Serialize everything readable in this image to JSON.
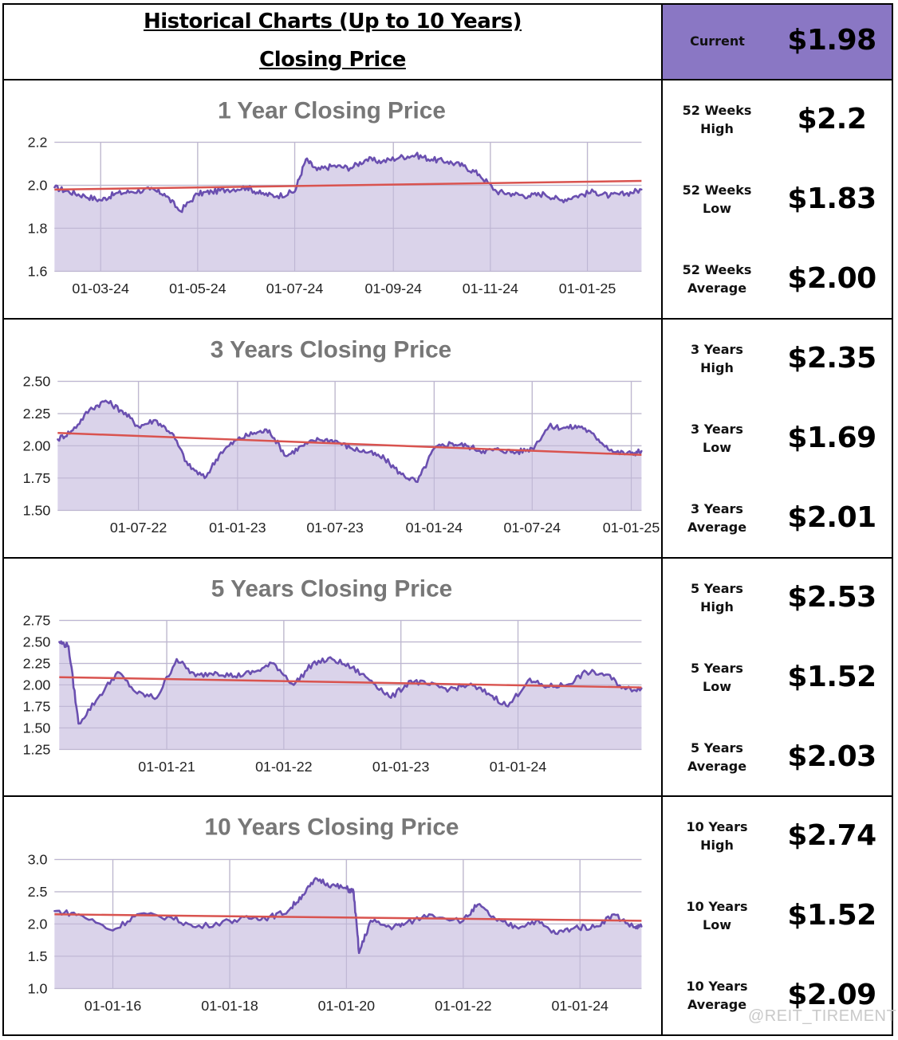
{
  "header": {
    "title_line1": "Historical Charts (Up to 10 Years)",
    "title_line2": "Closing Price",
    "current_label": "Current",
    "current_value": "$1.98"
  },
  "stats": [
    [
      {
        "label": "52 Weeks\nHigh",
        "value": "$2.2"
      },
      {
        "label": "52 Weeks\nLow",
        "value": "$1.83"
      },
      {
        "label": "52 Weeks\nAverage",
        "value": "$2.00"
      }
    ],
    [
      {
        "label": "3 Years\nHigh",
        "value": "$2.35"
      },
      {
        "label": "3 Years\nLow",
        "value": "$1.69"
      },
      {
        "label": "3 Years\nAverage",
        "value": "$2.01"
      }
    ],
    [
      {
        "label": "5 Years\nHigh",
        "value": "$2.53"
      },
      {
        "label": "5 Years\nLow",
        "value": "$1.52"
      },
      {
        "label": "5 Years\nAverage",
        "value": "$2.03"
      }
    ],
    [
      {
        "label": "10 Years\nHigh",
        "value": "$2.74"
      },
      {
        "label": "10 Years\nLow",
        "value": "$1.52"
      },
      {
        "label": "10 Years\nAverage",
        "value": "$2.09"
      }
    ]
  ],
  "watermark": "@REIT_TIREMENT",
  "colors": {
    "line": "#6a4fb0",
    "fill": "#d4cbe6",
    "trend": "#d9534f",
    "header_bg": "#8a77c4"
  },
  "chart_data": [
    {
      "type": "area",
      "title": "1 Year Closing Price",
      "xlim": [
        "2024-02-01",
        "2025-02-04"
      ],
      "ylim": [
        1.6,
        2.2
      ],
      "yticks": [
        1.6,
        1.8,
        2.0,
        2.2
      ],
      "yticklabels": [
        "1.6",
        "1.8",
        "2.0",
        "2.2"
      ],
      "xticks": [
        "2024-03-01",
        "2024-05-01",
        "2024-07-01",
        "2024-09-01",
        "2024-11-01",
        "2025-01-01"
      ],
      "xticklabels": [
        "01-03-24",
        "01-05-24",
        "01-07-24",
        "01-09-24",
        "01-11-24",
        "01-01-25"
      ],
      "trend": [
        1.98,
        2.02
      ],
      "x": [
        "2024-02-01",
        "2024-02-10",
        "2024-02-20",
        "2024-03-01",
        "2024-03-10",
        "2024-03-20",
        "2024-04-01",
        "2024-04-10",
        "2024-04-20",
        "2024-05-01",
        "2024-05-10",
        "2024-05-20",
        "2024-06-01",
        "2024-06-10",
        "2024-06-20",
        "2024-07-01",
        "2024-07-08",
        "2024-07-15",
        "2024-07-25",
        "2024-08-05",
        "2024-08-15",
        "2024-08-25",
        "2024-09-05",
        "2024-09-15",
        "2024-09-25",
        "2024-10-05",
        "2024-10-15",
        "2024-10-25",
        "2024-11-05",
        "2024-11-15",
        "2024-11-25",
        "2024-12-05",
        "2024-12-15",
        "2024-12-25",
        "2025-01-05",
        "2025-01-15",
        "2025-01-25",
        "2025-02-04"
      ],
      "y": [
        1.99,
        1.97,
        1.95,
        1.93,
        1.96,
        1.97,
        1.98,
        1.96,
        1.88,
        1.96,
        1.97,
        1.98,
        1.99,
        1.96,
        1.95,
        1.97,
        2.12,
        2.07,
        2.09,
        2.08,
        2.12,
        2.11,
        2.13,
        2.14,
        2.12,
        2.11,
        2.09,
        2.05,
        1.97,
        1.96,
        1.95,
        1.96,
        1.93,
        1.95,
        1.97,
        1.95,
        1.96,
        1.98
      ]
    },
    {
      "type": "area",
      "title": "3 Years Closing Price",
      "xlim": [
        "2022-02-01",
        "2025-01-20"
      ],
      "ylim": [
        1.5,
        2.5
      ],
      "yticks": [
        1.5,
        1.75,
        2.0,
        2.25,
        2.5
      ],
      "yticklabels": [
        "1.50",
        "1.75",
        "2.00",
        "2.25",
        "2.50"
      ],
      "xticks": [
        "2022-07-01",
        "2023-01-01",
        "2023-07-01",
        "2024-01-01",
        "2024-07-01",
        "2025-01-01"
      ],
      "xticklabels": [
        "01-07-22",
        "01-01-23",
        "01-07-23",
        "01-01-24",
        "01-07-24",
        "01-01-25"
      ],
      "trend": [
        2.1,
        1.93
      ],
      "x": [
        "2022-02-01",
        "2022-03-01",
        "2022-04-01",
        "2022-05-01",
        "2022-06-01",
        "2022-07-01",
        "2022-08-01",
        "2022-09-01",
        "2022-10-01",
        "2022-11-01",
        "2022-12-01",
        "2023-01-01",
        "2023-02-01",
        "2023-03-01",
        "2023-04-01",
        "2023-05-01",
        "2023-06-01",
        "2023-07-01",
        "2023-08-01",
        "2023-09-01",
        "2023-10-01",
        "2023-11-01",
        "2023-12-01",
        "2024-01-01",
        "2024-02-01",
        "2024-03-01",
        "2024-04-01",
        "2024-05-01",
        "2024-06-01",
        "2024-07-01",
        "2024-08-01",
        "2024-09-01",
        "2024-10-01",
        "2024-11-01",
        "2024-12-01",
        "2025-01-01",
        "2025-01-20"
      ],
      "y": [
        2.05,
        2.12,
        2.28,
        2.35,
        2.27,
        2.15,
        2.2,
        2.1,
        1.85,
        1.75,
        1.95,
        2.05,
        2.1,
        2.12,
        1.92,
        2.0,
        2.05,
        2.04,
        1.98,
        1.95,
        1.9,
        1.78,
        1.72,
        1.98,
        2.02,
        2.0,
        1.96,
        1.97,
        1.95,
        1.98,
        2.15,
        2.14,
        2.15,
        2.05,
        1.95,
        1.94,
        1.96
      ]
    },
    {
      "type": "area",
      "title": "5 Years Closing Price",
      "xlim": [
        "2020-02-01",
        "2025-01-20"
      ],
      "ylim": [
        1.25,
        2.75
      ],
      "yticks": [
        1.25,
        1.5,
        1.75,
        2.0,
        2.25,
        2.5,
        2.75
      ],
      "yticklabels": [
        "1.25",
        "1.50",
        "1.75",
        "2.00",
        "2.25",
        "2.50",
        "2.75"
      ],
      "xticks": [
        "2021-01-01",
        "2022-01-01",
        "2023-01-01",
        "2024-01-01"
      ],
      "xticklabels": [
        "01-01-21",
        "01-01-22",
        "01-01-23",
        "01-01-24"
      ],
      "trend": [
        2.09,
        1.97
      ],
      "x": [
        "2020-02-01",
        "2020-03-01",
        "2020-04-01",
        "2020-06-01",
        "2020-08-01",
        "2020-10-01",
        "2020-12-01",
        "2021-02-01",
        "2021-04-01",
        "2021-06-01",
        "2021-08-01",
        "2021-10-01",
        "2021-12-01",
        "2022-02-01",
        "2022-04-01",
        "2022-06-01",
        "2022-08-01",
        "2022-10-01",
        "2022-12-01",
        "2023-02-01",
        "2023-04-01",
        "2023-06-01",
        "2023-08-01",
        "2023-10-01",
        "2023-12-01",
        "2024-02-01",
        "2024-04-01",
        "2024-06-01",
        "2024-08-01",
        "2024-10-01",
        "2024-12-01",
        "2025-01-20"
      ],
      "y": [
        2.5,
        2.45,
        1.55,
        1.85,
        2.15,
        1.9,
        1.85,
        2.3,
        2.1,
        2.15,
        2.1,
        2.15,
        2.25,
        2.0,
        2.25,
        2.3,
        2.2,
        2.05,
        1.85,
        2.05,
        2.0,
        1.95,
        2.0,
        1.9,
        1.75,
        2.05,
        1.98,
        2.0,
        2.15,
        2.12,
        1.95,
        1.96
      ]
    },
    {
      "type": "area",
      "title": "10 Years Closing Price",
      "xlim": [
        "2015-01-01",
        "2025-01-20"
      ],
      "ylim": [
        1.0,
        3.0
      ],
      "yticks": [
        1.0,
        1.5,
        2.0,
        2.5,
        3.0
      ],
      "yticklabels": [
        "1.0",
        "1.5",
        "2.0",
        "2.5",
        "3.0"
      ],
      "xticks": [
        "2016-01-01",
        "2018-01-01",
        "2020-01-01",
        "2022-01-01",
        "2024-01-01"
      ],
      "xticklabels": [
        "01-01-16",
        "01-01-18",
        "01-01-20",
        "01-01-22",
        "01-01-24"
      ],
      "trend": [
        2.15,
        2.05
      ],
      "x": [
        "2015-01-01",
        "2015-06-01",
        "2016-01-01",
        "2016-06-01",
        "2017-01-01",
        "2017-06-01",
        "2018-01-01",
        "2018-06-01",
        "2018-09-01",
        "2019-01-01",
        "2019-04-01",
        "2019-07-01",
        "2019-10-01",
        "2020-01-01",
        "2020-02-15",
        "2020-03-20",
        "2020-06-01",
        "2020-10-01",
        "2021-01-01",
        "2021-06-01",
        "2022-01-01",
        "2022-04-01",
        "2022-08-01",
        "2022-12-01",
        "2023-04-01",
        "2023-08-01",
        "2023-12-01",
        "2024-04-01",
        "2024-08-01",
        "2024-12-01",
        "2025-01-20"
      ],
      "y": [
        2.2,
        2.15,
        1.9,
        2.15,
        2.1,
        1.95,
        2.05,
        2.1,
        2.1,
        2.2,
        2.45,
        2.7,
        2.6,
        2.55,
        2.5,
        1.55,
        2.05,
        1.95,
        2.0,
        2.15,
        2.05,
        2.3,
        2.05,
        1.95,
        2.05,
        1.85,
        1.95,
        1.95,
        2.15,
        1.95,
        1.96
      ]
    }
  ]
}
